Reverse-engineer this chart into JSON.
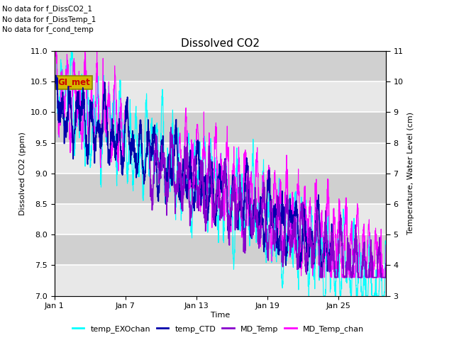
{
  "title": "Dissolved CO2",
  "xlabel": "Time",
  "ylabel_left": "Dissolved CO2 (ppm)",
  "ylabel_right": "Temperature, Water Level (cm)",
  "ylim_left": [
    7.0,
    11.0
  ],
  "ylim_right": [
    3.0,
    11.0
  ],
  "yticks_left": [
    7.0,
    7.5,
    8.0,
    8.5,
    9.0,
    9.5,
    10.0,
    10.5,
    11.0
  ],
  "yticks_right": [
    3.0,
    4.0,
    5.0,
    6.0,
    7.0,
    8.0,
    9.0,
    10.0,
    11.0
  ],
  "xtick_positions": [
    0,
    6,
    12,
    18,
    24
  ],
  "xtick_labels": [
    "Jan 1",
    "Jan 7",
    "Jan 13",
    "Jan 19",
    "Jan 25"
  ],
  "xlim": [
    0,
    28
  ],
  "no_data_texts": [
    "No data for f_DissCO2_1",
    "No data for f_DissTemp_1",
    "No data for f_cond_temp"
  ],
  "annotation_text": "GI_met",
  "annotation_color": "#cc0000",
  "annotation_bg": "#d4b800",
  "colors": {
    "temp_EXOchan": "#00ffff",
    "temp_CTD": "#0000aa",
    "MD_Temp": "#8800cc",
    "MD_Temp_chan": "#ff00ff"
  },
  "legend_labels": [
    "temp_EXOchan",
    "temp_CTD",
    "MD_Temp",
    "MD_Temp_chan"
  ],
  "plot_bg_light": "#e8e8e8",
  "plot_bg_dark": "#d0d0d0",
  "grid_color": "#ffffff",
  "fig_bg": "#ffffff",
  "n_points": 2000,
  "seed": 7
}
